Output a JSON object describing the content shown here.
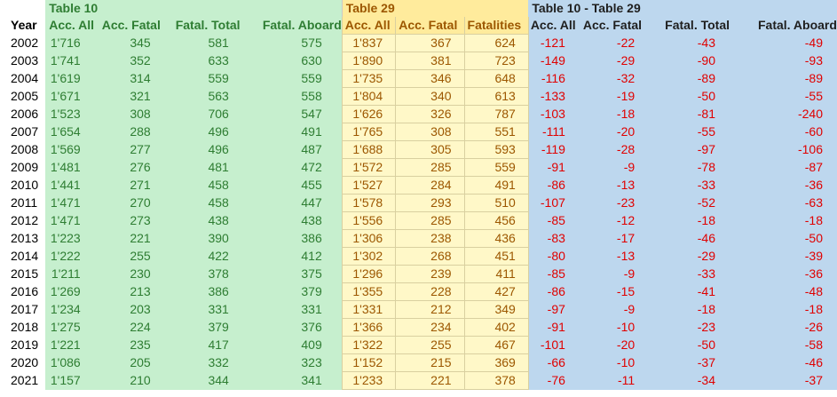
{
  "sheet": {
    "year_header": "Year",
    "groups": [
      {
        "id": "g",
        "title": "Table 10",
        "columns": [
          "Acc. All",
          "Acc. Fatal",
          "Fatal. Total",
          "Fatal. Aboard"
        ]
      },
      {
        "id": "y",
        "title": "Table 29",
        "columns": [
          "Acc. All",
          "Acc. Fatal",
          "Fatalities"
        ]
      },
      {
        "id": "b",
        "title": "Table 10 - Table 29",
        "columns": [
          "Acc. All",
          "Acc. Fatal",
          "Fatal. Total",
          "Fatal. Aboard"
        ]
      }
    ],
    "colors": {
      "green_bg": "#c6efce",
      "yellow_bg": "#ffeb9c",
      "blue_bg": "#bdd7ee",
      "negative": "#e00000"
    },
    "rows": [
      {
        "year": "2002",
        "t10": [
          "1'716",
          "345",
          "581",
          "575"
        ],
        "t29": [
          "1'837",
          "367",
          "624"
        ],
        "diff": [
          "-121",
          "-22",
          "-43",
          "-49"
        ]
      },
      {
        "year": "2003",
        "t10": [
          "1'741",
          "352",
          "633",
          "630"
        ],
        "t29": [
          "1'890",
          "381",
          "723"
        ],
        "diff": [
          "-149",
          "-29",
          "-90",
          "-93"
        ]
      },
      {
        "year": "2004",
        "t10": [
          "1'619",
          "314",
          "559",
          "559"
        ],
        "t29": [
          "1'735",
          "346",
          "648"
        ],
        "diff": [
          "-116",
          "-32",
          "-89",
          "-89"
        ]
      },
      {
        "year": "2005",
        "t10": [
          "1'671",
          "321",
          "563",
          "558"
        ],
        "t29": [
          "1'804",
          "340",
          "613"
        ],
        "diff": [
          "-133",
          "-19",
          "-50",
          "-55"
        ]
      },
      {
        "year": "2006",
        "t10": [
          "1'523",
          "308",
          "706",
          "547"
        ],
        "t29": [
          "1'626",
          "326",
          "787"
        ],
        "diff": [
          "-103",
          "-18",
          "-81",
          "-240"
        ]
      },
      {
        "year": "2007",
        "t10": [
          "1'654",
          "288",
          "496",
          "491"
        ],
        "t29": [
          "1'765",
          "308",
          "551"
        ],
        "diff": [
          "-111",
          "-20",
          "-55",
          "-60"
        ]
      },
      {
        "year": "2008",
        "t10": [
          "1'569",
          "277",
          "496",
          "487"
        ],
        "t29": [
          "1'688",
          "305",
          "593"
        ],
        "diff": [
          "-119",
          "-28",
          "-97",
          "-106"
        ]
      },
      {
        "year": "2009",
        "t10": [
          "1'481",
          "276",
          "481",
          "472"
        ],
        "t29": [
          "1'572",
          "285",
          "559"
        ],
        "diff": [
          "-91",
          "-9",
          "-78",
          "-87"
        ]
      },
      {
        "year": "2010",
        "t10": [
          "1'441",
          "271",
          "458",
          "455"
        ],
        "t29": [
          "1'527",
          "284",
          "491"
        ],
        "diff": [
          "-86",
          "-13",
          "-33",
          "-36"
        ]
      },
      {
        "year": "2011",
        "t10": [
          "1'471",
          "270",
          "458",
          "447"
        ],
        "t29": [
          "1'578",
          "293",
          "510"
        ],
        "diff": [
          "-107",
          "-23",
          "-52",
          "-63"
        ]
      },
      {
        "year": "2012",
        "t10": [
          "1'471",
          "273",
          "438",
          "438"
        ],
        "t29": [
          "1'556",
          "285",
          "456"
        ],
        "diff": [
          "-85",
          "-12",
          "-18",
          "-18"
        ]
      },
      {
        "year": "2013",
        "t10": [
          "1'223",
          "221",
          "390",
          "386"
        ],
        "t29": [
          "1'306",
          "238",
          "436"
        ],
        "diff": [
          "-83",
          "-17",
          "-46",
          "-50"
        ]
      },
      {
        "year": "2014",
        "t10": [
          "1'222",
          "255",
          "422",
          "412"
        ],
        "t29": [
          "1'302",
          "268",
          "451"
        ],
        "diff": [
          "-80",
          "-13",
          "-29",
          "-39"
        ]
      },
      {
        "year": "2015",
        "t10": [
          "1'211",
          "230",
          "378",
          "375"
        ],
        "t29": [
          "1'296",
          "239",
          "411"
        ],
        "diff": [
          "-85",
          "-9",
          "-33",
          "-36"
        ]
      },
      {
        "year": "2016",
        "t10": [
          "1'269",
          "213",
          "386",
          "379"
        ],
        "t29": [
          "1'355",
          "228",
          "427"
        ],
        "diff": [
          "-86",
          "-15",
          "-41",
          "-48"
        ]
      },
      {
        "year": "2017",
        "t10": [
          "1'234",
          "203",
          "331",
          "331"
        ],
        "t29": [
          "1'331",
          "212",
          "349"
        ],
        "diff": [
          "-97",
          "-9",
          "-18",
          "-18"
        ]
      },
      {
        "year": "2018",
        "t10": [
          "1'275",
          "224",
          "379",
          "376"
        ],
        "t29": [
          "1'366",
          "234",
          "402"
        ],
        "diff": [
          "-91",
          "-10",
          "-23",
          "-26"
        ]
      },
      {
        "year": "2019",
        "t10": [
          "1'221",
          "235",
          "417",
          "409"
        ],
        "t29": [
          "1'322",
          "255",
          "467"
        ],
        "diff": [
          "-101",
          "-20",
          "-50",
          "-58"
        ]
      },
      {
        "year": "2020",
        "t10": [
          "1'086",
          "205",
          "332",
          "323"
        ],
        "t29": [
          "1'152",
          "215",
          "369"
        ],
        "diff": [
          "-66",
          "-10",
          "-37",
          "-46"
        ]
      },
      {
        "year": "2021",
        "t10": [
          "1'157",
          "210",
          "344",
          "341"
        ],
        "t29": [
          "1'233",
          "221",
          "378"
        ],
        "diff": [
          "-76",
          "-11",
          "-34",
          "-37"
        ]
      }
    ]
  }
}
